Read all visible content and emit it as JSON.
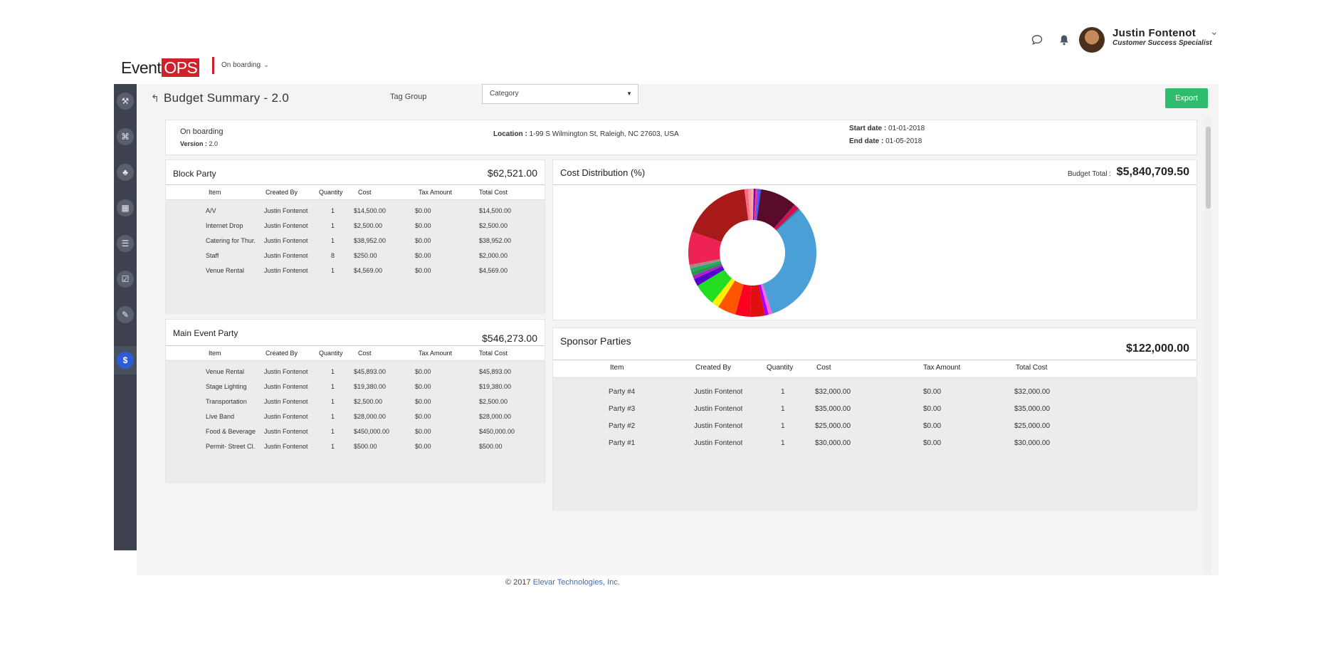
{
  "app": {
    "logo_event": "Event",
    "logo_ops": "OPS",
    "project": "On boarding"
  },
  "user": {
    "name": "Justin Fontenot",
    "role": "Customer Success Specialist"
  },
  "icons": {
    "chat": "chat-bubble-icon",
    "bell": "bell-icon",
    "back": "back-arrow-icon"
  },
  "sidebar": {
    "items": [
      {
        "name": "dashboard-icon",
        "glyph": "⚒"
      },
      {
        "name": "org-icon",
        "glyph": "⌘"
      },
      {
        "name": "group-icon",
        "glyph": "♣"
      },
      {
        "name": "calendar-icon",
        "glyph": "▦"
      },
      {
        "name": "chart-icon",
        "glyph": "☰"
      },
      {
        "name": "checklist-icon",
        "glyph": "☑"
      },
      {
        "name": "attachment-icon",
        "glyph": "✎"
      },
      {
        "name": "budget-icon",
        "glyph": "$"
      }
    ]
  },
  "page": {
    "title": "Budget Summary - 2.0",
    "tag_group_label": "Tag Group",
    "tag_group_value": "Category",
    "export_label": "Export"
  },
  "info": {
    "project": "On boarding",
    "version_label": "Version :",
    "version": "2.0",
    "location_label": "Location :",
    "location": "1-99 S Wilmington St, Raleigh, NC 27603, USA",
    "start_label": "Start date :",
    "start": "01-01-2018",
    "end_label": "End date :",
    "end": "01-05-2018"
  },
  "columns": {
    "item": "Item",
    "created_by": "Created By",
    "quantity": "Quantity",
    "cost": "Cost",
    "tax": "Tax Amount",
    "total": "Total Cost"
  },
  "block_party": {
    "title": "Block Party",
    "total": "$62,521.00",
    "rows": [
      {
        "item": "A/V",
        "by": "Justin Fontenot",
        "qty": "1",
        "cost": "$14,500.00",
        "tax": "$0.00",
        "total": "$14,500.00"
      },
      {
        "item": "Internet Drop",
        "by": "Justin Fontenot",
        "qty": "1",
        "cost": "$2,500.00",
        "tax": "$0.00",
        "total": "$2,500.00"
      },
      {
        "item": "Catering for Thur...",
        "by": "Justin Fontenot",
        "qty": "1",
        "cost": "$38,952.00",
        "tax": "$0.00",
        "total": "$38,952.00"
      },
      {
        "item": "Staff",
        "by": "Justin Fontenot",
        "qty": "8",
        "cost": "$250.00",
        "tax": "$0.00",
        "total": "$2,000.00"
      },
      {
        "item": "Venue Rental",
        "by": "Justin Fontenot",
        "qty": "1",
        "cost": "$4,569.00",
        "tax": "$0.00",
        "total": "$4,569.00"
      }
    ]
  },
  "main_event": {
    "title": "Main Event Party",
    "total": "$546,273.00",
    "rows": [
      {
        "item": "Venue Rental",
        "by": "Justin Fontenot",
        "qty": "1",
        "cost": "$45,893.00",
        "tax": "$0.00",
        "total": "$45,893.00"
      },
      {
        "item": "Stage Lighting",
        "by": "Justin Fontenot",
        "qty": "1",
        "cost": "$19,380.00",
        "tax": "$0.00",
        "total": "$19,380.00"
      },
      {
        "item": "Transportation",
        "by": "Justin Fontenot",
        "qty": "1",
        "cost": "$2,500.00",
        "tax": "$0.00",
        "total": "$2,500.00"
      },
      {
        "item": "Live Band",
        "by": "Justin Fontenot",
        "qty": "1",
        "cost": "$28,000.00",
        "tax": "$0.00",
        "total": "$28,000.00"
      },
      {
        "item": "Food & Beverage",
        "by": "Justin Fontenot",
        "qty": "1",
        "cost": "$450,000.00",
        "tax": "$0.00",
        "total": "$450,000.00"
      },
      {
        "item": "Permit- Street Cl...",
        "by": "Justin Fontenot",
        "qty": "1",
        "cost": "$500.00",
        "tax": "$0.00",
        "total": "$500.00"
      }
    ]
  },
  "sponsor": {
    "title": "Sponsor Parties",
    "total": "$122,000.00",
    "rows": [
      {
        "item": "Party #4",
        "by": "Justin Fontenot",
        "qty": "1",
        "cost": "$32,000.00",
        "tax": "$0.00",
        "total": "$32,000.00"
      },
      {
        "item": "Party #3",
        "by": "Justin Fontenot",
        "qty": "1",
        "cost": "$35,000.00",
        "tax": "$0.00",
        "total": "$35,000.00"
      },
      {
        "item": "Party #2",
        "by": "Justin Fontenot",
        "qty": "1",
        "cost": "$25,000.00",
        "tax": "$0.00",
        "total": "$25,000.00"
      },
      {
        "item": "Party #1",
        "by": "Justin Fontenot",
        "qty": "1",
        "cost": "$30,000.00",
        "tax": "$0.00",
        "total": "$30,000.00"
      }
    ]
  },
  "chart_data": {
    "type": "pie",
    "title": "Cost Distribution (%)",
    "budget_total_label": "Budget Total :",
    "budget_total": "$5,840,709.50",
    "values": [
      0.5,
      0.5,
      0.5,
      10,
      1.5,
      0.5,
      34,
      1,
      1,
      4,
      4,
      5,
      2,
      6,
      2,
      1,
      1,
      1,
      1,
      9,
      19,
      1,
      1,
      0.5,
      0.5
    ],
    "colors": [
      "#ff3366",
      "#7744ff",
      "#3355ff",
      "#5a0a2a",
      "#cc1155",
      "#2288aa",
      "#4a9fd6",
      "#ff66dd",
      "#aa00ff",
      "#e01010",
      "#ff0022",
      "#ff5500",
      "#ffee00",
      "#22dd22",
      "#5500cc",
      "#aa22cc",
      "#229944",
      "#22aa66",
      "#aa8888",
      "#ee2255",
      "#a81a1a",
      "#ff6688",
      "#ff9999",
      "#ffaaaa",
      "#7700aa"
    ]
  },
  "footer": {
    "copyright": "© 2017",
    "company": "Elevar Technologies, Inc."
  }
}
